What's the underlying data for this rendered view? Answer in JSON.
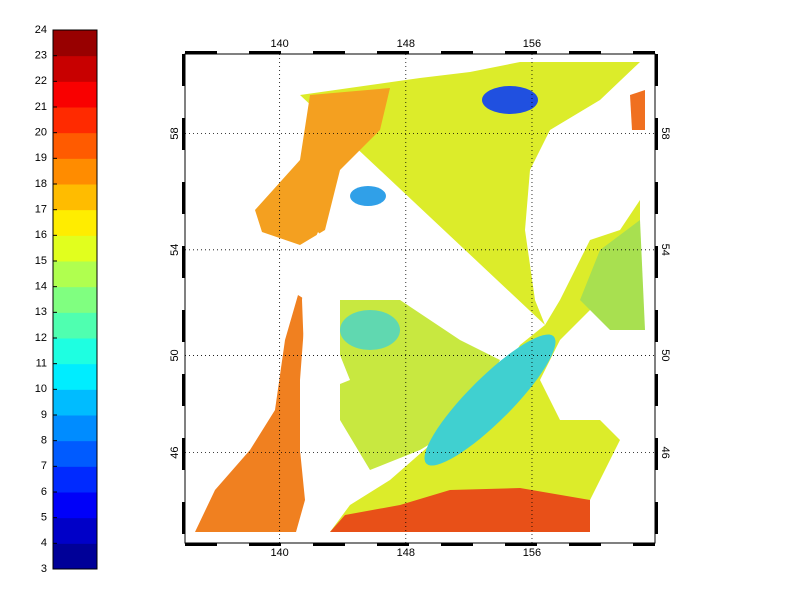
{
  "colorbar": {
    "ticks": [
      3,
      4,
      5,
      6,
      7,
      8,
      9,
      10,
      11,
      12,
      13,
      14,
      15,
      16,
      17,
      18,
      19,
      20,
      21,
      22,
      23,
      24
    ],
    "range": [
      3,
      24
    ]
  },
  "map": {
    "xlim": [
      134,
      163.8
    ],
    "ylim": [
      42,
      60.5
    ],
    "xticks": [
      140,
      148,
      156
    ],
    "yticks": [
      46,
      50,
      54,
      58
    ],
    "grid": true
  }
}
